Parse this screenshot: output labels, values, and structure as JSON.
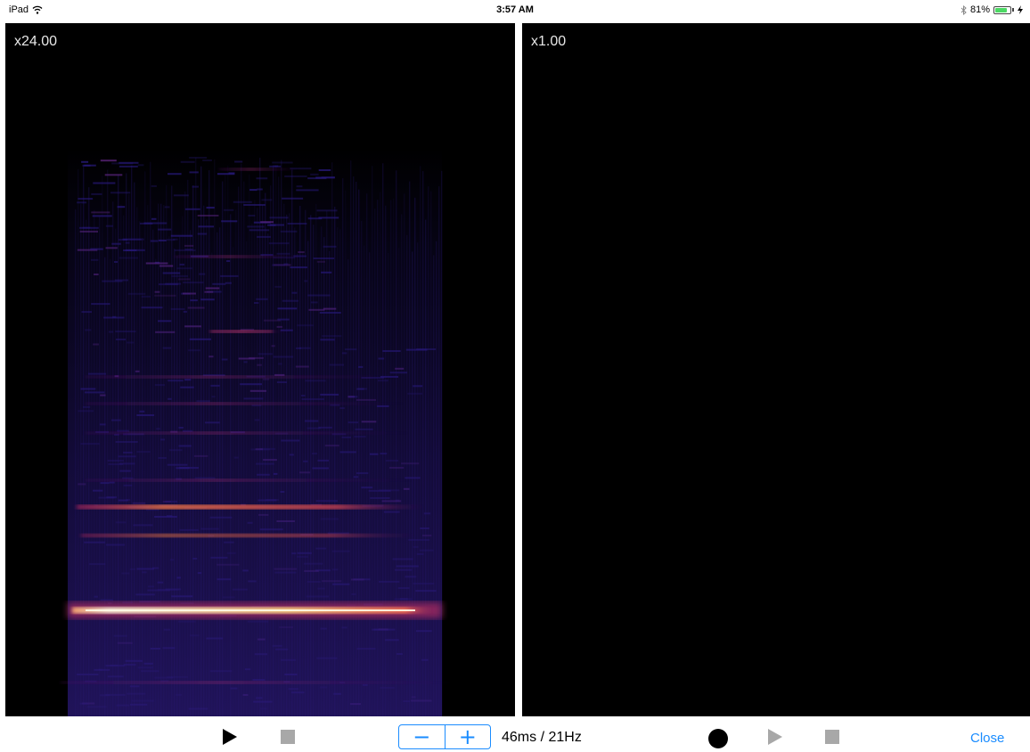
{
  "status_bar": {
    "device": "iPad",
    "time": "3:57 AM",
    "battery": "81%",
    "battery_level": 0.81,
    "icons": [
      "wifi-icon",
      "bluetooth-icon",
      "battery-icon",
      "charging-icon"
    ]
  },
  "left_panel": {
    "zoom": "x24.00"
  },
  "right_panel": {
    "zoom": "x1.00"
  },
  "toolbar": {
    "play_left_icon": "play-icon",
    "stop_left_icon": "stop-icon",
    "decrement_label": "−",
    "increment_label": "+",
    "resolution": "46ms / 21Hz",
    "record_icon": "record-icon",
    "play_right_icon": "play-icon",
    "stop_right_icon": "stop-icon",
    "close_label": "Close"
  },
  "colors": {
    "accent": "#1a8cff",
    "spectrogram_bg": "#000000",
    "spectrogram_low": "#1c0f5c",
    "spectrogram_mid": "#c2306a",
    "spectrogram_high": "#fff2c0",
    "disabled_control": "#a8a8a8"
  }
}
